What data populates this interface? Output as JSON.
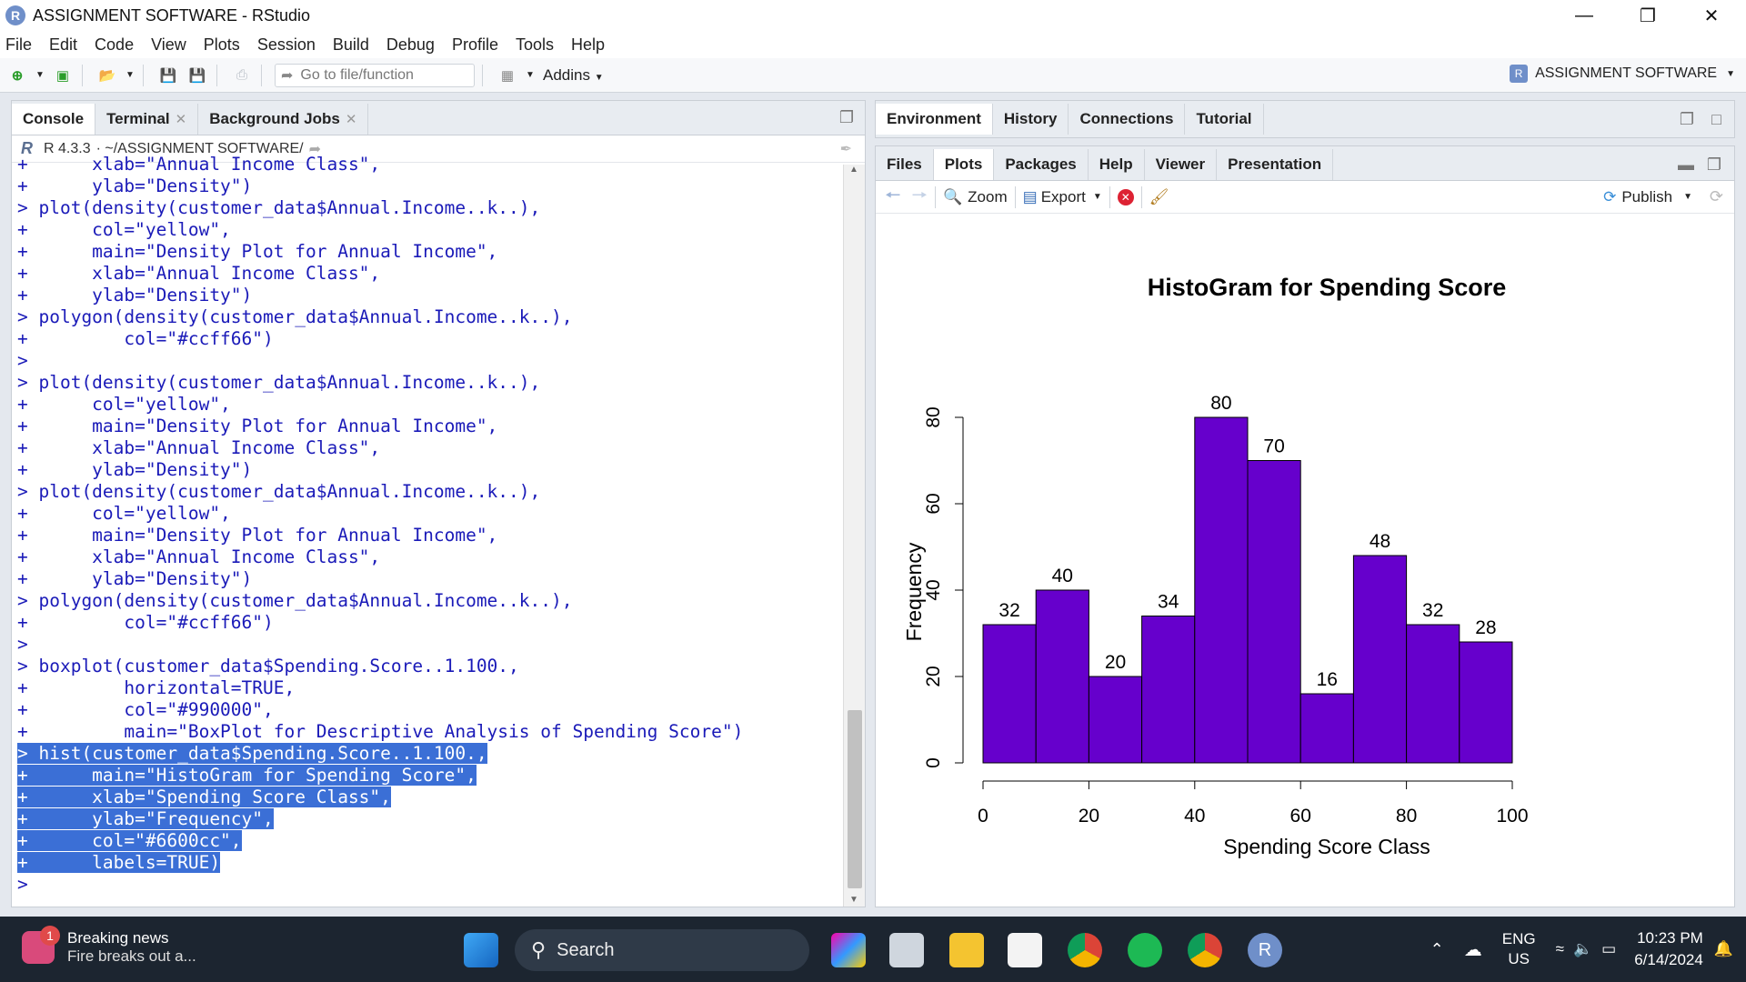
{
  "window": {
    "title": "ASSIGNMENT SOFTWARE - RStudio",
    "app_icon": "R",
    "controls": [
      "minimize-icon",
      "restore-icon",
      "close-icon"
    ]
  },
  "menu": [
    "File",
    "Edit",
    "Code",
    "View",
    "Plots",
    "Session",
    "Build",
    "Debug",
    "Profile",
    "Tools",
    "Help"
  ],
  "toolbar": {
    "goto_placeholder": "Go to file/function",
    "addins_label": "Addins",
    "project_label": "ASSIGNMENT SOFTWARE"
  },
  "left_pane": {
    "tabs": [
      "Console",
      "Terminal",
      "Background Jobs"
    ],
    "r_version": "R 4.3.3",
    "path": "· ~/ASSIGNMENT SOFTWARE/",
    "console_lines": [
      {
        "text": "+      xlab=\"Annual Income Class\",",
        "hl": false
      },
      {
        "text": "+      ylab=\"Density\")",
        "hl": false
      },
      {
        "text": "> plot(density(customer_data$Annual.Income..k..),",
        "hl": false
      },
      {
        "text": "+      col=\"yellow\",",
        "hl": false
      },
      {
        "text": "+      main=\"Density Plot for Annual Income\",",
        "hl": false
      },
      {
        "text": "+      xlab=\"Annual Income Class\",",
        "hl": false
      },
      {
        "text": "+      ylab=\"Density\")",
        "hl": false
      },
      {
        "text": "> polygon(density(customer_data$Annual.Income..k..),",
        "hl": false
      },
      {
        "text": "+         col=\"#ccff66\")",
        "hl": false
      },
      {
        "text": ">",
        "hl": false
      },
      {
        "text": "> plot(density(customer_data$Annual.Income..k..),",
        "hl": false
      },
      {
        "text": "+      col=\"yellow\",",
        "hl": false
      },
      {
        "text": "+      main=\"Density Plot for Annual Income\",",
        "hl": false
      },
      {
        "text": "+      xlab=\"Annual Income Class\",",
        "hl": false
      },
      {
        "text": "+      ylab=\"Density\")",
        "hl": false
      },
      {
        "text": "> plot(density(customer_data$Annual.Income..k..),",
        "hl": false
      },
      {
        "text": "+      col=\"yellow\",",
        "hl": false
      },
      {
        "text": "+      main=\"Density Plot for Annual Income\",",
        "hl": false
      },
      {
        "text": "+      xlab=\"Annual Income Class\",",
        "hl": false
      },
      {
        "text": "+      ylab=\"Density\")",
        "hl": false
      },
      {
        "text": "> polygon(density(customer_data$Annual.Income..k..),",
        "hl": false
      },
      {
        "text": "+         col=\"#ccff66\")",
        "hl": false
      },
      {
        "text": ">",
        "hl": false
      },
      {
        "text": "> boxplot(customer_data$Spending.Score..1.100.,",
        "hl": false
      },
      {
        "text": "+         horizontal=TRUE,",
        "hl": false
      },
      {
        "text": "+         col=\"#990000\",",
        "hl": false
      },
      {
        "text": "+         main=\"BoxPlot for Descriptive Analysis of Spending Score\")",
        "hl": false
      },
      {
        "text": "> hist(customer_data$Spending.Score..1.100.,",
        "hl": true
      },
      {
        "text": "+      main=\"HistoGram for Spending Score\",",
        "hl": true
      },
      {
        "text": "+      xlab=\"Spending Score Class\",",
        "hl": true
      },
      {
        "text": "+      ylab=\"Frequency\",",
        "hl": true
      },
      {
        "text": "+      col=\"#6600cc\",",
        "hl": true
      },
      {
        "text": "+      labels=TRUE)",
        "hl": true
      },
      {
        "text": "> ",
        "hl": false
      }
    ]
  },
  "right_top": {
    "tabs": [
      "Environment",
      "History",
      "Connections",
      "Tutorial"
    ]
  },
  "right_bottom": {
    "tabs": [
      "Files",
      "Plots",
      "Packages",
      "Help",
      "Viewer",
      "Presentation"
    ],
    "zoom_label": "Zoom",
    "export_label": "Export",
    "publish_label": "Publish"
  },
  "chart_data": {
    "type": "bar",
    "title": "HistoGram for Spending Score",
    "xlabel": "Spending Score Class",
    "ylabel": "Frequency",
    "bar_color": "#6600cc",
    "bins": [
      [
        0,
        10
      ],
      [
        10,
        20
      ],
      [
        20,
        30
      ],
      [
        30,
        40
      ],
      [
        40,
        50
      ],
      [
        50,
        60
      ],
      [
        60,
        70
      ],
      [
        70,
        80
      ],
      [
        80,
        90
      ],
      [
        90,
        100
      ]
    ],
    "values": [
      32,
      40,
      20,
      34,
      80,
      70,
      16,
      48,
      32,
      28
    ],
    "xticks": [
      0,
      20,
      40,
      60,
      80,
      100
    ],
    "yticks": [
      0,
      20,
      40,
      60,
      80
    ],
    "xlim": [
      0,
      100
    ],
    "ylim": [
      0,
      80
    ]
  },
  "taskbar": {
    "news_badge": "1",
    "news_title": "Breaking news",
    "news_sub": "Fire breaks out a...",
    "search_label": "Search",
    "lang_1": "ENG",
    "lang_2": "US",
    "time": "10:23 PM",
    "date": "6/14/2024"
  }
}
